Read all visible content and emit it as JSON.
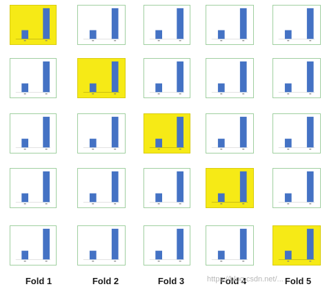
{
  "folds": [
    "Fold 1",
    "Fold 2",
    "Fold 3",
    "Fold 4",
    "Fold 5"
  ],
  "highlight_color": "#f6ea16",
  "bar_color": "#4472c4",
  "tile_border_color": "#9fcf9f",
  "chart_data": {
    "type": "bar",
    "grid_rows": 5,
    "grid_cols": 5,
    "highlight_cells": [
      [
        0,
        0
      ],
      [
        1,
        1
      ],
      [
        2,
        2
      ],
      [
        3,
        3
      ],
      [
        4,
        4
      ]
    ],
    "values": [
      1,
      3.5
    ],
    "title": "",
    "xlabel": "",
    "ylabel": ""
  },
  "watermark": "https://blog.csdn.net/..."
}
